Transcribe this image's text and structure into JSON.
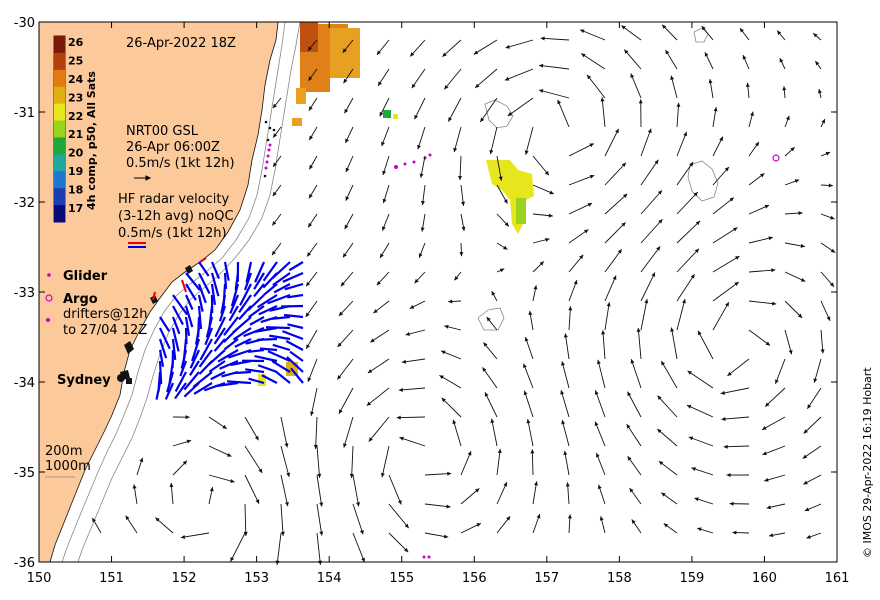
{
  "title_date": "26-Apr-2022 18Z",
  "colorbar": {
    "label": "4h comp, p50, All Sats",
    "ticks": [
      "26",
      "25",
      "24",
      "23",
      "22",
      "21",
      "20",
      "19",
      "18",
      "17"
    ],
    "colors": [
      "#7a1a0a",
      "#b4400c",
      "#e07a12",
      "#e0b010",
      "#e6e61e",
      "#9ad21e",
      "#1ea83c",
      "#1ea8a0",
      "#1e78d2",
      "#1e3cb4",
      "#0a0a78"
    ]
  },
  "legend": {
    "gsl_line1": "NRT00 GSL",
    "gsl_line2": "26-Apr 06:00Z",
    "gsl_line3": "0.5m/s (1kt 12h)",
    "hf_line1": "HF radar velocity",
    "hf_line2": "(3-12h avg) noQC",
    "hf_line3": "0.5m/s (1kt 12h)",
    "glider": "Glider",
    "argo": "Argo",
    "drifters_line1": "drifters@12h",
    "drifters_line2": "to 27/04 12Z",
    "city": "Sydney",
    "depth1": "200m",
    "depth2": "1000m"
  },
  "axes": {
    "x_ticks": [
      "150",
      "151",
      "152",
      "153",
      "154",
      "155",
      "156",
      "157",
      "158",
      "159",
      "160",
      "161"
    ],
    "y_ticks": [
      "-30",
      "-31",
      "-32",
      "-33",
      "-34",
      "-35",
      "-36"
    ]
  },
  "credit": "© IMOS 29-Apr-2022 16:19 Hobart",
  "colors": {
    "land": "#fcc99a",
    "hf_arrows": "#0000ee",
    "glider": "#cc00cc"
  }
}
